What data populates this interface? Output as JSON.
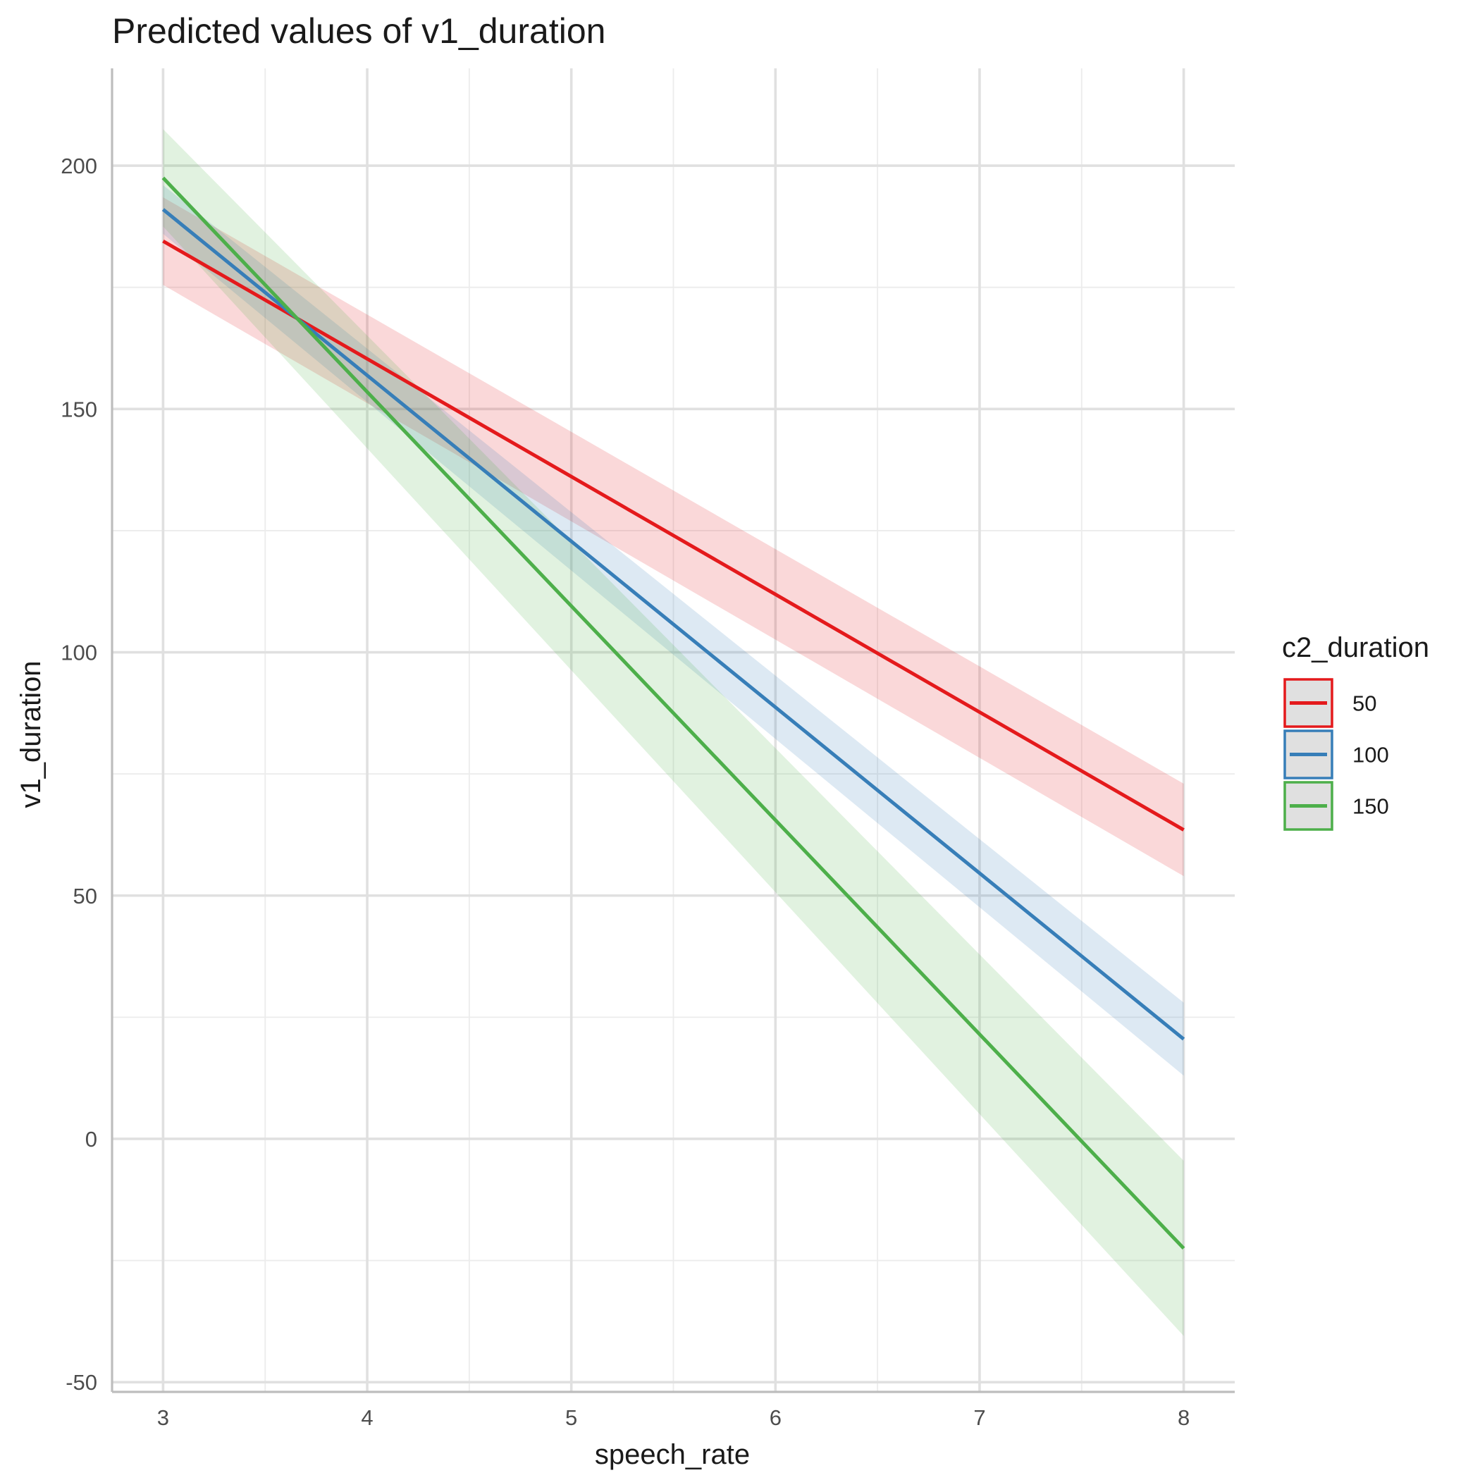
{
  "chart_data": {
    "type": "line",
    "title": "Predicted values of v1_duration",
    "xlabel": "speech_rate",
    "ylabel": "v1_duration",
    "xlim": [
      2.75,
      8.25
    ],
    "ylim": [
      -52,
      220
    ],
    "x_ticks": [
      3,
      4,
      5,
      6,
      7,
      8
    ],
    "x_tick_labels": [
      "3",
      "4",
      "5",
      "6",
      "7",
      "8"
    ],
    "y_ticks": [
      -50,
      0,
      50,
      100,
      150,
      200
    ],
    "y_tick_labels": [
      "-50",
      "0",
      "50",
      "100",
      "150",
      "200"
    ],
    "x_minor": [
      3.5,
      4.5,
      5.5,
      6.5,
      7.5
    ],
    "y_minor": [
      -25,
      25,
      75,
      125,
      175
    ],
    "grid": true,
    "legend": {
      "title": "c2_duration",
      "position": "right"
    },
    "x": [
      3,
      8
    ],
    "series": [
      {
        "name": "50",
        "color": "#e41a1c",
        "values": [
          184.5,
          63.5
        ],
        "ci_low": [
          175.5,
          54.0
        ],
        "ci_high": [
          193.5,
          73.0
        ]
      },
      {
        "name": "100",
        "color": "#377eb8",
        "values": [
          191.0,
          20.5
        ],
        "ci_low": [
          186.0,
          13.0
        ],
        "ci_high": [
          196.0,
          28.0
        ]
      },
      {
        "name": "150",
        "color": "#4daf4a",
        "values": [
          197.5,
          -22.5
        ],
        "ci_low": [
          187.5,
          -40.5
        ],
        "ci_high": [
          207.5,
          -4.5
        ]
      }
    ]
  }
}
